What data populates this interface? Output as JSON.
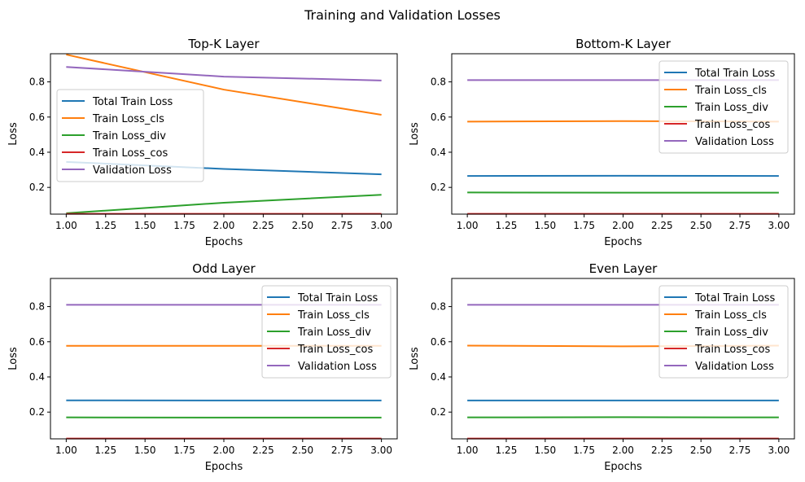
{
  "figure": {
    "title": "Training and Validation Losses"
  },
  "series_colors": {
    "Total Train Loss": "#1f77b4",
    "Train Loss_cls": "#ff7f0e",
    "Train Loss_div": "#2ca02c",
    "Train Loss_cos": "#d62728",
    "Validation Loss": "#9467bd"
  },
  "chart_data": [
    {
      "type": "line",
      "title": "Top-K Layer",
      "xlabel": "Epochs",
      "ylabel": "Loss",
      "xlim": [
        0.9,
        3.1
      ],
      "ylim": [
        0.048,
        0.96
      ],
      "xticks": [
        "1.00",
        "1.25",
        "1.50",
        "1.75",
        "2.00",
        "2.25",
        "2.50",
        "2.75",
        "3.00"
      ],
      "yticks": [
        "0.2",
        "0.4",
        "0.6",
        "0.8"
      ],
      "legend": "center-left",
      "grid": false,
      "x": [
        1,
        2,
        3
      ],
      "series": [
        {
          "name": "Total Train Loss",
          "values": [
            0.345,
            0.305,
            0.274
          ]
        },
        {
          "name": "Train Loss_cls",
          "values": [
            0.955,
            0.756,
            0.613
          ]
        },
        {
          "name": "Train Loss_div",
          "values": [
            0.053,
            0.113,
            0.158
          ]
        },
        {
          "name": "Train Loss_cos",
          "values": [
            0.05,
            0.05,
            0.05
          ]
        },
        {
          "name": "Validation Loss",
          "values": [
            0.885,
            0.83,
            0.808
          ]
        }
      ]
    },
    {
      "type": "line",
      "title": "Bottom-K Layer",
      "xlabel": "Epochs",
      "ylabel": "Loss",
      "xlim": [
        0.9,
        3.1
      ],
      "ylim": [
        0.048,
        0.96
      ],
      "xticks": [
        "1.00",
        "1.25",
        "1.50",
        "1.75",
        "2.00",
        "2.25",
        "2.50",
        "2.75",
        "3.00"
      ],
      "yticks": [
        "0.2",
        "0.4",
        "0.6",
        "0.8"
      ],
      "legend": "top-right",
      "grid": false,
      "x": [
        1,
        2,
        3
      ],
      "series": [
        {
          "name": "Total Train Loss",
          "values": [
            0.265,
            0.266,
            0.265
          ]
        },
        {
          "name": "Train Loss_cls",
          "values": [
            0.574,
            0.577,
            0.574
          ]
        },
        {
          "name": "Train Loss_div",
          "values": [
            0.171,
            0.17,
            0.17
          ]
        },
        {
          "name": "Train Loss_cos",
          "values": [
            0.05,
            0.05,
            0.05
          ]
        },
        {
          "name": "Validation Loss",
          "values": [
            0.81,
            0.81,
            0.81
          ]
        }
      ]
    },
    {
      "type": "line",
      "title": "Odd Layer",
      "xlabel": "Epochs",
      "ylabel": "Loss",
      "xlim": [
        0.9,
        3.1
      ],
      "ylim": [
        0.048,
        0.96
      ],
      "xticks": [
        "1.00",
        "1.25",
        "1.50",
        "1.75",
        "2.00",
        "2.25",
        "2.50",
        "2.75",
        "3.00"
      ],
      "yticks": [
        "0.2",
        "0.4",
        "0.6",
        "0.8"
      ],
      "legend": "top-right",
      "grid": false,
      "x": [
        1,
        2,
        3
      ],
      "series": [
        {
          "name": "Total Train Loss",
          "values": [
            0.267,
            0.266,
            0.266
          ]
        },
        {
          "name": "Train Loss_cls",
          "values": [
            0.577,
            0.577,
            0.577
          ]
        },
        {
          "name": "Train Loss_div",
          "values": [
            0.17,
            0.169,
            0.169
          ]
        },
        {
          "name": "Train Loss_cos",
          "values": [
            0.05,
            0.05,
            0.05
          ]
        },
        {
          "name": "Validation Loss",
          "values": [
            0.81,
            0.81,
            0.81
          ]
        }
      ]
    },
    {
      "type": "line",
      "title": "Even Layer",
      "xlabel": "Epochs",
      "ylabel": "Loss",
      "xlim": [
        0.9,
        3.1
      ],
      "ylim": [
        0.048,
        0.96
      ],
      "xticks": [
        "1.00",
        "1.25",
        "1.50",
        "1.75",
        "2.00",
        "2.25",
        "2.50",
        "2.75",
        "3.00"
      ],
      "yticks": [
        "0.2",
        "0.4",
        "0.6",
        "0.8"
      ],
      "legend": "top-right",
      "grid": false,
      "x": [
        1,
        2,
        3
      ],
      "series": [
        {
          "name": "Total Train Loss",
          "values": [
            0.266,
            0.266,
            0.266
          ]
        },
        {
          "name": "Train Loss_cls",
          "values": [
            0.578,
            0.574,
            0.578
          ]
        },
        {
          "name": "Train Loss_div",
          "values": [
            0.17,
            0.171,
            0.17
          ]
        },
        {
          "name": "Train Loss_cos",
          "values": [
            0.05,
            0.05,
            0.05
          ]
        },
        {
          "name": "Validation Loss",
          "values": [
            0.81,
            0.81,
            0.81
          ]
        }
      ]
    }
  ]
}
